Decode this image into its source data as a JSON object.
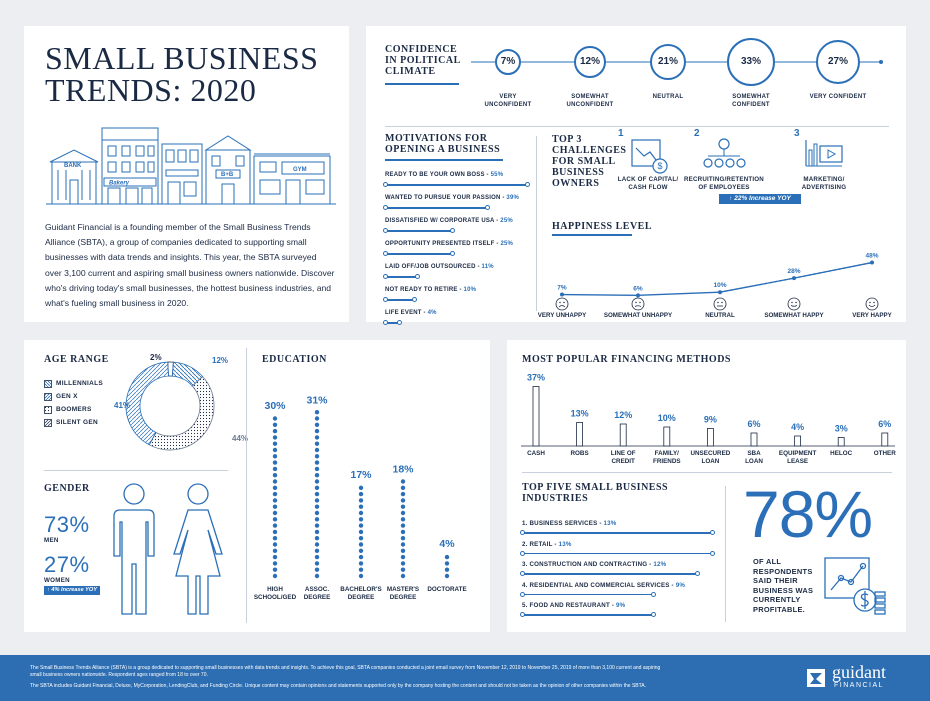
{
  "title": {
    "line1": "SMALL BUSINESS",
    "line2": "TRENDS: 2020"
  },
  "storefront_signs": {
    "bank": "BANK",
    "bakery": "Bakery",
    "bnb": "B+B",
    "gym": "GYM"
  },
  "intro": "Guidant Financial is a founding member of the Small Business Trends Alliance (SBTA), a group of companies dedicated to supporting small businesses with data trends and insights. This year, the SBTA surveyed over 3,100 current and aspiring small business owners nationwide. Discover who's driving today's small businesses, the hottest business industries, and what's fueling small business in 2020.",
  "confidence": {
    "title": "CONFIDENCE IN POLITICAL CLIMATE",
    "items": [
      {
        "value": "7%",
        "label": "VERY UNCONFIDENT"
      },
      {
        "value": "12%",
        "label": "SOMEWHAT UNCONFIDENT"
      },
      {
        "value": "21%",
        "label": "NEUTRAL"
      },
      {
        "value": "33%",
        "label": "SOMEWHAT CONFIDENT"
      },
      {
        "value": "27%",
        "label": "VERY CONFIDENT"
      }
    ]
  },
  "motivations": {
    "title": "MOTIVATIONS FOR OPENING A BUSINESS",
    "items": [
      {
        "label": "READY TO BE YOUR OWN BOSS",
        "value": "55%"
      },
      {
        "label": "WANTED TO PURSUE YOUR PASSION",
        "value": "39%"
      },
      {
        "label": "DISSATISFIED W/ CORPORATE USA",
        "value": "25%"
      },
      {
        "label": "OPPORTUNITY PRESENTED ITSELF",
        "value": "25%"
      },
      {
        "label": "LAID OFF/JOB OUTSOURCED",
        "value": "11%"
      },
      {
        "label": "NOT READY TO RETIRE",
        "value": "10%"
      },
      {
        "label": "LIFE EVENT",
        "value": "4%"
      }
    ],
    "fractions": [
      0.55,
      0.39,
      0.25,
      0.25,
      0.11,
      0.1,
      0.04
    ]
  },
  "challenges": {
    "title": "TOP 3 CHALLENGES FOR SMALL BUSINESS OWNERS",
    "items": [
      {
        "num": "1",
        "label": "LACK OF CAPITAL/ CASH FLOW",
        "icon": "chart-down-dollar-icon"
      },
      {
        "num": "2",
        "label": "RECRUITING/RETENTION OF EMPLOYEES",
        "icon": "team-network-icon"
      },
      {
        "num": "3",
        "label": "MARKETING/ ADVERTISING",
        "icon": "bar-chart-video-icon"
      }
    ],
    "badge": "22% Increase YOY",
    "badge_arrow": "↑"
  },
  "happiness": {
    "title": "HAPPINESS LEVEL",
    "items": [
      {
        "label": "VERY UNHAPPY",
        "value": "7%"
      },
      {
        "label": "SOMEWHAT UNHAPPY",
        "value": "6%"
      },
      {
        "label": "NEUTRAL",
        "value": "10%"
      },
      {
        "label": "SOMEWHAT HAPPY",
        "value": "28%"
      },
      {
        "label": "VERY HAPPY",
        "value": "48%"
      }
    ]
  },
  "age": {
    "title": "AGE RANGE",
    "legend": [
      {
        "label": "MILLENNIALS"
      },
      {
        "label": "GEN X"
      },
      {
        "label": "BOOMERS"
      },
      {
        "label": "SILENT GEN"
      }
    ],
    "labels": {
      "millennials": "12%",
      "genx": "41%",
      "boomers": "44%",
      "silent": "2%"
    },
    "fractions": {
      "millennials": 0.12,
      "genx": 0.41,
      "boomers": 0.44,
      "silent": 0.02
    }
  },
  "gender": {
    "title": "GENDER",
    "men_value": "73%",
    "men_label": "MEN",
    "women_value": "27%",
    "women_label": "WOMEN",
    "badge": "4% Increase YOY",
    "badge_arrow": "↑"
  },
  "education": {
    "title": "EDUCATION",
    "items": [
      {
        "label": "HIGH SCHOOL/GED",
        "value": "30%"
      },
      {
        "label": "ASSOC. DEGREE",
        "value": "31%"
      },
      {
        "label": "BACHELOR'S DEGREE",
        "value": "17%"
      },
      {
        "label": "MASTER'S DEGREE",
        "value": "18%"
      },
      {
        "label": "DOCTORATE",
        "value": "4%"
      }
    ]
  },
  "financing": {
    "title": "MOST POPULAR FINANCING METHODS",
    "items": [
      {
        "label": "CASH",
        "value": "37%"
      },
      {
        "label": "ROBS",
        "value": "13%"
      },
      {
        "label": "LINE OF CREDIT",
        "value": "12%"
      },
      {
        "label": "FAMILY/ FRIENDS",
        "value": "10%"
      },
      {
        "label": "UNSECURED LOAN",
        "value": "9%"
      },
      {
        "label": "SBA LOAN",
        "value": "6%"
      },
      {
        "label": "EQUIPMENT LEASE",
        "value": "4%"
      },
      {
        "label": "HELOC",
        "value": "3%"
      },
      {
        "label": "OTHER",
        "value": "6%"
      }
    ]
  },
  "industries": {
    "title": "TOP FIVE SMALL BUSINESS INDUSTRIES",
    "items": [
      {
        "label": "1. BUSINESS SERVICES",
        "value": "13%"
      },
      {
        "label": "2. RETAIL",
        "value": "13%"
      },
      {
        "label": "3. CONSTRUCTION AND CONTRACTING",
        "value": "12%"
      },
      {
        "label": "4. RESIDENTIAL AND COMMERCIAL SERVICES",
        "value": "9%"
      },
      {
        "label": "5. FOOD AND RESTAURANT",
        "value": "9%"
      }
    ]
  },
  "profitable": {
    "value": "78%",
    "label": "OF ALL RESPONDENTS SAID THEIR BUSINESS WAS CURRENTLY PROFITABLE."
  },
  "footer": {
    "line1": "The Small Business Trends Alliance (SBTA) is a group dedicated to supporting small businesses with data trends and insights. To achieve this goal, SBTA companies conducted a joint email survey from November 12, 2019 to November 25, 2019 of more than 3,100 current and aspiring small business owners nationwide. Respondent ages ranged from 18 to over 70.",
    "line2": "The SBTA includes Guidant Financial, Deluxe, MyCorporation, LendingClub, and Funding Circle. Unique content may contain opinions and statements supported only by the company hosting the content and should not be taken as the opinion of other companies within the SBTA.",
    "logo_top": "guidant",
    "logo_bottom": "FINANCIAL"
  },
  "colors": {
    "navy": "#1b2a44",
    "blue": "#2a6fb8",
    "footer": "#2d6db1",
    "background": "#eceef1"
  }
}
